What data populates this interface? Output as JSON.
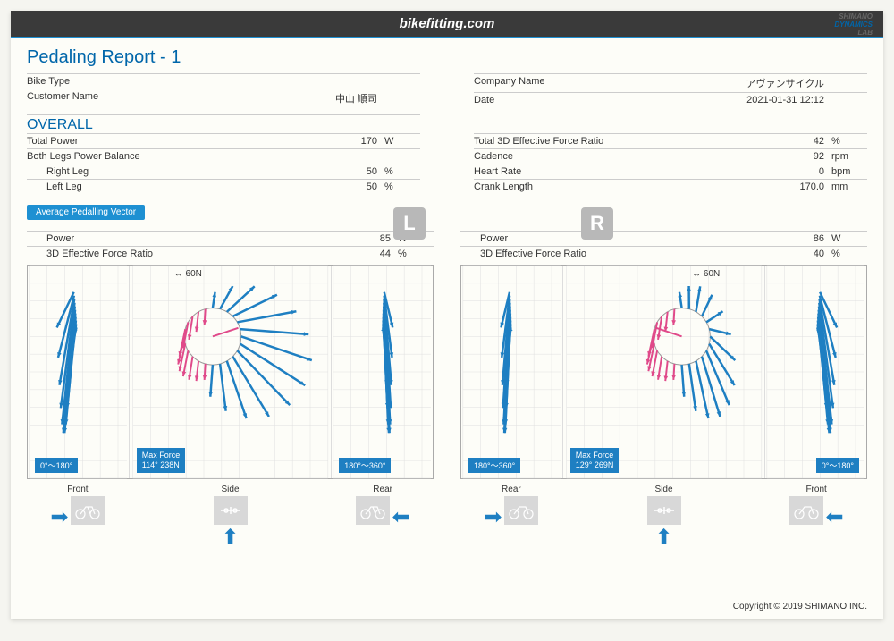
{
  "header": {
    "site": "bikefitting.com",
    "brand1": "SHIMANO",
    "brand2": "DYNAMICS",
    "brand3": "LAB"
  },
  "title": "Pedaling Report - 1",
  "info": {
    "left": {
      "bike_type_lab": "Bike Type",
      "bike_type_val": "",
      "customer_lab": "Customer Name",
      "customer_val": "中山 順司"
    },
    "right": {
      "company_lab": "Company Name",
      "company_val": "アヴァンサイクル",
      "date_lab": "Date",
      "date_val": "2021-01-31 12:12"
    }
  },
  "overall": {
    "title": "OVERALL",
    "rows_left": [
      {
        "lab": "Total Power",
        "val": "170",
        "unit": "W"
      },
      {
        "lab": "Both Legs Power Balance",
        "val": "",
        "unit": ""
      },
      {
        "lab": "Right Leg",
        "val": "50",
        "unit": "%",
        "indent": true
      },
      {
        "lab": "Left Leg",
        "val": "50",
        "unit": "%",
        "indent": true
      }
    ],
    "rows_right": [
      {
        "lab": "Total 3D Effective Force Ratio",
        "val": "42",
        "unit": "%"
      },
      {
        "lab": "Cadence",
        "val": "92",
        "unit": "rpm"
      },
      {
        "lab": "Heart Rate",
        "val": "0",
        "unit": "bpm"
      },
      {
        "lab": "Crank Length",
        "val": "170.0",
        "unit": "mm"
      }
    ]
  },
  "tag": "Average Pedalling Vector",
  "left_leg": {
    "badge": "L",
    "power_lab": "Power",
    "power_val": "85",
    "power_unit": "W",
    "ratio_lab": "3D Effective Force Ratio",
    "ratio_val": "44",
    "ratio_unit": "%",
    "scale": "60N",
    "range_front": "0°～180°",
    "range_rear": "180°～360°",
    "max_force": "Max Force\n114° 238N",
    "foot_labels": [
      "Front",
      "Side",
      "Rear"
    ]
  },
  "right_leg": {
    "badge": "R",
    "power_lab": "Power",
    "power_val": "86",
    "power_unit": "W",
    "ratio_lab": "3D Effective Force Ratio",
    "ratio_val": "40",
    "ratio_unit": "%",
    "scale": "60N",
    "range_rear": "180°～360°",
    "range_front": "0°～180°",
    "max_force": "Max Force\n129° 269N",
    "foot_labels": [
      "Rear",
      "Side",
      "Front"
    ]
  },
  "colors": {
    "blue": "#1e7fc2",
    "red": "#e04a8a",
    "grey": "#b8b8b8",
    "dark": "#3a3a3a",
    "grid": "#e6e6e0"
  },
  "copyright": "Copyright © 2019 SHIMANO INC."
}
